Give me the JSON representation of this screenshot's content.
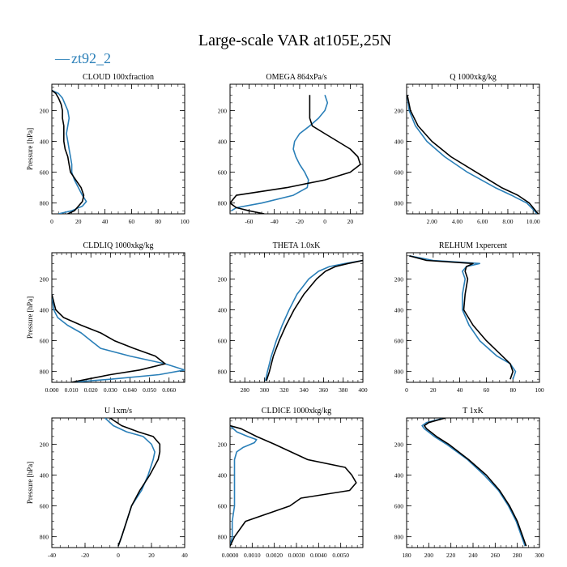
{
  "figure": {
    "title": "Large-scale VAR at105E,25N",
    "legend": {
      "placement": "top-left",
      "entries": [
        {
          "label": "zt92_2",
          "color": "#2a7fb8",
          "marker": "—"
        }
      ]
    },
    "colors": {
      "model": "#2a7fb8",
      "reference": "#000000"
    }
  },
  "chart_data": [
    {
      "type": "line",
      "title": "CLOUD  100xfraction",
      "ylabel": "Pressure [hPa]",
      "xlim": [
        0,
        100
      ],
      "ylim": [
        870,
        30
      ],
      "xticks": [
        0,
        20,
        40,
        60,
        80,
        100
      ],
      "xtick_labels": [
        "0",
        "20",
        "40",
        "60",
        "80",
        "100"
      ],
      "yticks": [
        200,
        400,
        600,
        800
      ],
      "ytick_labels": [
        "200",
        "400",
        "600",
        "800"
      ],
      "series": [
        {
          "name": "zt92_2",
          "color": "#2a7fb8",
          "y": [
            70,
            90,
            120,
            160,
            200,
            250,
            300,
            350,
            400,
            450,
            500,
            550,
            600,
            650,
            700,
            750,
            790,
            820,
            850,
            870
          ],
          "x": [
            0,
            5,
            8,
            10,
            12,
            13,
            12,
            11,
            12,
            13,
            14,
            15,
            15,
            17,
            20,
            23,
            26,
            23,
            15,
            5
          ]
        },
        {
          "name": "",
          "color": "#000000",
          "y": [
            70,
            90,
            120,
            160,
            200,
            250,
            300,
            350,
            400,
            450,
            500,
            550,
            600,
            650,
            700,
            750,
            790,
            820,
            850,
            870
          ],
          "x": [
            0,
            3,
            5,
            7,
            8,
            8,
            9,
            9,
            9,
            10,
            12,
            13,
            14,
            18,
            22,
            24,
            23,
            20,
            17,
            12
          ]
        }
      ]
    },
    {
      "type": "line",
      "title": "OMEGA  864xPa/s",
      "ylabel": "",
      "xlim": [
        -75,
        30
      ],
      "ylim": [
        870,
        30
      ],
      "xticks": [
        -60,
        -40,
        -20,
        0,
        20
      ],
      "xtick_labels": [
        "-60",
        "-40",
        "-20",
        "0",
        "20"
      ],
      "yticks": [
        200,
        400,
        600,
        800
      ],
      "ytick_labels": [
        "200",
        "400",
        "600",
        "800"
      ],
      "series": [
        {
          "name": "zt92_2",
          "color": "#2a7fb8",
          "y": [
            100,
            150,
            200,
            250,
            300,
            350,
            400,
            450,
            500,
            550,
            600,
            650,
            700,
            750,
            800,
            830,
            850
          ],
          "x": [
            0,
            2,
            0,
            -5,
            -12,
            -20,
            -24,
            -25,
            -23,
            -20,
            -16,
            -13,
            -14,
            -25,
            -50,
            -70,
            -74
          ]
        },
        {
          "name": "",
          "color": "#000000",
          "y": [
            100,
            150,
            200,
            250,
            300,
            350,
            400,
            450,
            500,
            550,
            600,
            650,
            700,
            750,
            800,
            830,
            850,
            870
          ],
          "x": [
            -12,
            -12,
            -12,
            -12,
            -10,
            0,
            10,
            20,
            26,
            28,
            20,
            0,
            -30,
            -70,
            -75,
            -70,
            -60,
            -48
          ]
        }
      ]
    },
    {
      "type": "line",
      "title": "Q  1000xkg/kg",
      "ylabel": "",
      "xlim": [
        0,
        10.5
      ],
      "ylim": [
        870,
        30
      ],
      "xticks": [
        2,
        4,
        6,
        8,
        10
      ],
      "xtick_labels": [
        "2.00",
        "4.00",
        "6.00",
        "8.00",
        "10.00"
      ],
      "yticks": [
        200,
        400,
        600,
        800
      ],
      "ytick_labels": [
        "200",
        "400",
        "600",
        "800"
      ],
      "series": [
        {
          "name": "zt92_2",
          "color": "#2a7fb8",
          "y": [
            100,
            200,
            300,
            400,
            500,
            600,
            700,
            750,
            800,
            850,
            870
          ],
          "x": [
            0.05,
            0.2,
            0.7,
            1.6,
            3.0,
            4.8,
            7.0,
            8.3,
            9.5,
            10.1,
            10.3
          ]
        },
        {
          "name": "",
          "color": "#000000",
          "y": [
            100,
            200,
            300,
            400,
            500,
            600,
            700,
            750,
            800,
            850,
            870
          ],
          "x": [
            0.05,
            0.3,
            0.9,
            2.0,
            3.5,
            5.5,
            7.5,
            8.8,
            9.7,
            10.2,
            10.4
          ]
        }
      ]
    },
    {
      "type": "line",
      "title": "CLDLIQ  1000xkg/kg",
      "ylabel": "Pressure [hPa]",
      "xlim": [
        0,
        0.068
      ],
      "ylim": [
        870,
        30
      ],
      "xticks": [
        0,
        0.01,
        0.02,
        0.03,
        0.04,
        0.05,
        0.06
      ],
      "xtick_labels": [
        "0.000",
        "0.010",
        "0.020",
        "0.030",
        "0.040",
        "0.050",
        "0.060"
      ],
      "yticks": [
        200,
        400,
        600,
        800
      ],
      "ytick_labels": [
        "200",
        "400",
        "600",
        "800"
      ],
      "series": [
        {
          "name": "zt92_2",
          "color": "#2a7fb8",
          "y": [
            300,
            400,
            450,
            500,
            550,
            600,
            650,
            700,
            750,
            790,
            820,
            850,
            870
          ],
          "x": [
            0,
            0.001,
            0.003,
            0.008,
            0.015,
            0.02,
            0.025,
            0.04,
            0.058,
            0.068,
            0.055,
            0.03,
            0.01
          ]
        },
        {
          "name": "",
          "color": "#000000",
          "y": [
            300,
            400,
            450,
            500,
            550,
            600,
            650,
            700,
            750,
            790,
            820,
            850,
            870
          ],
          "x": [
            0,
            0.002,
            0.006,
            0.015,
            0.025,
            0.032,
            0.042,
            0.053,
            0.058,
            0.045,
            0.03,
            0.018,
            0.01
          ]
        }
      ]
    },
    {
      "type": "line",
      "title": "THETA  1.0xK",
      "ylabel": "",
      "xlim": [
        265,
        400
      ],
      "ylim": [
        870,
        30
      ],
      "xticks": [
        280,
        300,
        320,
        340,
        360,
        380,
        400
      ],
      "xtick_labels": [
        "280",
        "300",
        "320",
        "340",
        "360",
        "380",
        "400"
      ],
      "yticks": [
        200,
        400,
        600,
        800
      ],
      "ytick_labels": [
        "200",
        "400",
        "600",
        "800"
      ],
      "series": [
        {
          "name": "zt92_2",
          "color": "#2a7fb8",
          "y": [
            80,
            100,
            120,
            150,
            200,
            300,
            400,
            500,
            600,
            700,
            800,
            860
          ],
          "x": [
            400,
            382,
            366,
            355,
            345,
            333,
            325,
            318,
            312,
            307,
            303,
            301
          ]
        },
        {
          "name": "",
          "color": "#000000",
          "y": [
            80,
            100,
            120,
            150,
            200,
            300,
            400,
            500,
            600,
            700,
            800,
            860
          ],
          "x": [
            400,
            385,
            372,
            362,
            353,
            340,
            330,
            322,
            315,
            309,
            305,
            302
          ]
        }
      ]
    },
    {
      "type": "line",
      "title": "RELHUM  1xpercent",
      "ylabel": "",
      "xlim": [
        0,
        100
      ],
      "ylim": [
        870,
        30
      ],
      "xticks": [
        0,
        20,
        40,
        60,
        80,
        100
      ],
      "xtick_labels": [
        "0",
        "20",
        "40",
        "60",
        "80",
        "100"
      ],
      "yticks": [
        200,
        400,
        600,
        800
      ],
      "ytick_labels": [
        "200",
        "400",
        "600",
        "800"
      ],
      "series": [
        {
          "name": "zt92_2",
          "color": "#2a7fb8",
          "y": [
            50,
            80,
            100,
            120,
            150,
            200,
            300,
            400,
            500,
            600,
            700,
            750,
            800,
            850
          ],
          "x": [
            2,
            20,
            55,
            45,
            42,
            44,
            42,
            42,
            47,
            55,
            68,
            78,
            82,
            80
          ]
        },
        {
          "name": "",
          "color": "#000000",
          "y": [
            50,
            80,
            100,
            120,
            150,
            200,
            300,
            400,
            500,
            600,
            700,
            750,
            800,
            850
          ],
          "x": [
            2,
            15,
            50,
            45,
            44,
            46,
            44,
            43,
            50,
            60,
            72,
            78,
            80,
            78
          ]
        }
      ]
    },
    {
      "type": "line",
      "title": "U  1xm/s",
      "ylabel": "Pressure [hPa]",
      "xlim": [
        -40,
        40
      ],
      "ylim": [
        870,
        30
      ],
      "xticks": [
        -40,
        -20,
        0,
        20,
        40
      ],
      "xtick_labels": [
        "-40",
        "-20",
        "0",
        "20",
        "40"
      ],
      "yticks": [
        200,
        400,
        600,
        800
      ],
      "ytick_labels": [
        "200",
        "400",
        "600",
        "800"
      ],
      "series": [
        {
          "name": "zt92_2",
          "color": "#2a7fb8",
          "y": [
            30,
            80,
            120,
            150,
            200,
            250,
            300,
            400,
            500,
            600,
            700,
            800,
            860
          ],
          "x": [
            -8,
            -3,
            5,
            15,
            20,
            22,
            21,
            18,
            14,
            8,
            5,
            2,
            0
          ]
        },
        {
          "name": "",
          "color": "#000000",
          "y": [
            30,
            80,
            120,
            150,
            200,
            250,
            300,
            400,
            500,
            600,
            700,
            800,
            860
          ],
          "x": [
            -5,
            2,
            12,
            21,
            25,
            25,
            24,
            19,
            13,
            8,
            5,
            2,
            0
          ]
        }
      ]
    },
    {
      "type": "line",
      "title": "CLDICE  1000xkg/kg",
      "ylabel": "",
      "xlim": [
        0,
        0.006
      ],
      "ylim": [
        870,
        30
      ],
      "xticks": [
        0,
        0.001,
        0.002,
        0.003,
        0.004,
        0.005
      ],
      "xtick_labels": [
        "0.0000",
        "0.0010",
        "0.0020",
        "0.0030",
        "0.0040",
        "0.0050"
      ],
      "yticks": [
        200,
        400,
        600,
        800
      ],
      "ytick_labels": [
        "200",
        "400",
        "600",
        "800"
      ],
      "series": [
        {
          "name": "zt92_2",
          "color": "#2a7fb8",
          "y": [
            80,
            120,
            150,
            170,
            190,
            220,
            250,
            300,
            400,
            500,
            600,
            700,
            800,
            860
          ],
          "x": [
            0,
            0.0003,
            0.0008,
            0.0012,
            0.0011,
            0.0006,
            0.0003,
            0.0002,
            0.0002,
            0.0002,
            0.0002,
            0.0001,
            0.0001,
            0
          ]
        },
        {
          "name": "",
          "color": "#000000",
          "y": [
            80,
            100,
            150,
            200,
            300,
            350,
            400,
            450,
            500,
            550,
            600,
            650,
            700,
            800,
            860
          ],
          "x": [
            0,
            0.0005,
            0.0012,
            0.002,
            0.0035,
            0.0052,
            0.0055,
            0.0057,
            0.0054,
            0.0032,
            0.0027,
            0.0017,
            0.0007,
            0.0002,
            0
          ]
        }
      ]
    },
    {
      "type": "line",
      "title": "T  1xK",
      "ylabel": "",
      "xlim": [
        180,
        300
      ],
      "ylim": [
        870,
        30
      ],
      "xticks": [
        180,
        200,
        220,
        240,
        260,
        280,
        300
      ],
      "xtick_labels": [
        "180",
        "200",
        "220",
        "240",
        "260",
        "280",
        "300"
      ],
      "yticks": [
        200,
        400,
        600,
        800
      ],
      "ytick_labels": [
        "200",
        "400",
        "600",
        "800"
      ],
      "series": [
        {
          "name": "zt92_2",
          "color": "#2a7fb8",
          "y": [
            30,
            60,
            80,
            100,
            150,
            200,
            300,
            400,
            500,
            600,
            700,
            800,
            860
          ],
          "x": [
            214,
            198,
            194,
            196,
            205,
            216,
            235,
            250,
            263,
            272,
            279,
            284,
            287
          ]
        },
        {
          "name": "",
          "color": "#000000",
          "y": [
            30,
            60,
            80,
            100,
            150,
            200,
            300,
            400,
            500,
            600,
            700,
            800,
            860
          ],
          "x": [
            215,
            200,
            196,
            198,
            207,
            218,
            236,
            252,
            264,
            273,
            280,
            285,
            288
          ]
        }
      ]
    }
  ]
}
